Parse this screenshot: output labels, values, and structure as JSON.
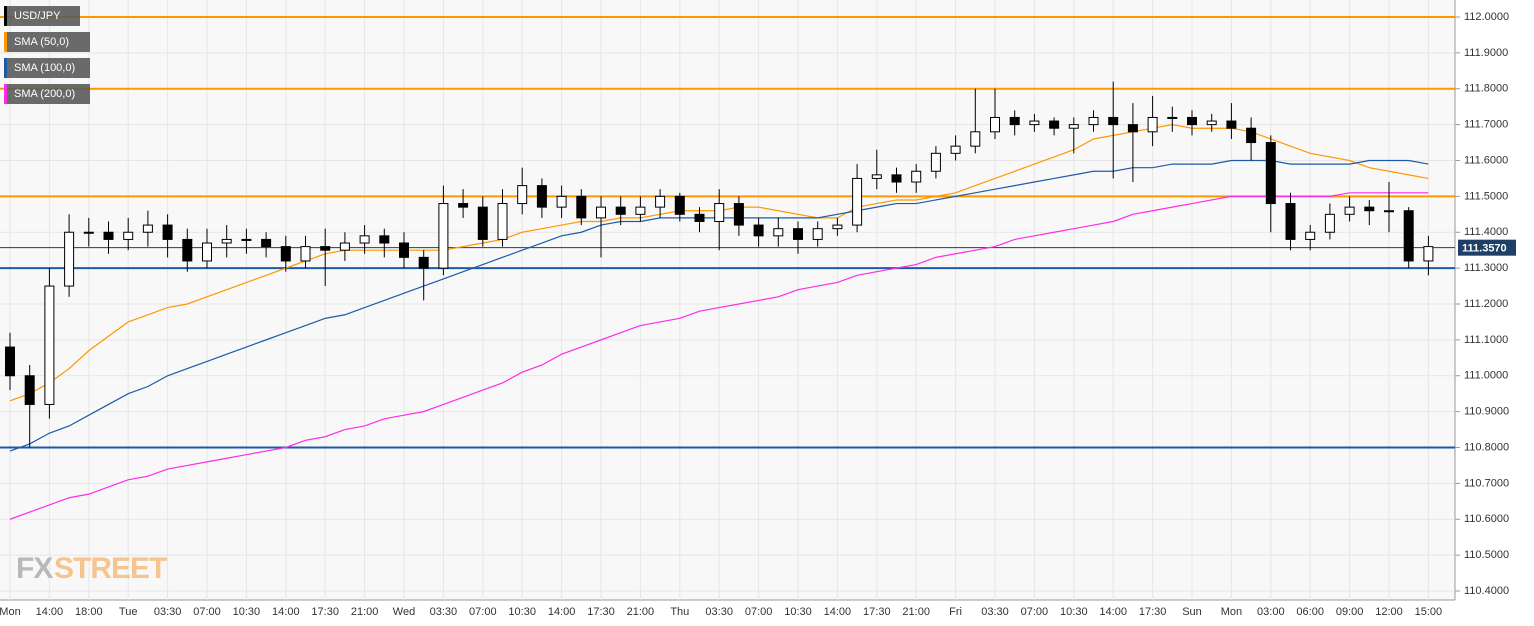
{
  "chart_data": {
    "type": "candlestick",
    "watermark": {
      "left": "FX",
      "right": "STREET"
    },
    "categories": [
      "Mon",
      null,
      "14:00",
      null,
      "18:00",
      null,
      "Tue",
      null,
      "03:30",
      null,
      "07:00",
      null,
      "10:30",
      null,
      "14:00",
      null,
      "17:30",
      null,
      "21:00",
      null,
      "Wed",
      null,
      "03:30",
      null,
      "07:00",
      null,
      "10:30",
      null,
      "14:00",
      null,
      "17:30",
      null,
      "21:00",
      null,
      "Thu",
      null,
      "03:30",
      null,
      "07:00",
      null,
      "10:30",
      null,
      "14:00",
      null,
      "17:30",
      null,
      "21:00",
      null,
      "Fri",
      null,
      "03:30",
      null,
      "07:00",
      null,
      "10:30",
      null,
      "14:00",
      null,
      "17:30",
      null,
      "Sun",
      null,
      "Mon",
      null,
      "03:00",
      null,
      "06:00",
      null,
      "09:00",
      null,
      "12:00",
      null,
      "15:00"
    ],
    "candles": {
      "name": "USD/JPY",
      "color": "#000000",
      "open": [
        111.08,
        111.0,
        110.92,
        111.25,
        111.4,
        111.4,
        111.38,
        111.4,
        111.42,
        111.38,
        111.32,
        111.37,
        111.38,
        111.38,
        111.36,
        111.32,
        111.36,
        111.35,
        111.37,
        111.39,
        111.37,
        111.33,
        111.3,
        111.48,
        111.47,
        111.38,
        111.48,
        111.53,
        111.47,
        111.5,
        111.44,
        111.47,
        111.45,
        111.47,
        111.5,
        111.45,
        111.43,
        111.48,
        111.42,
        111.39,
        111.41,
        111.38,
        111.41,
        111.42,
        111.55,
        111.56,
        111.54,
        111.57,
        111.62,
        111.64,
        111.68,
        111.72,
        111.7,
        111.71,
        111.69,
        111.7,
        111.72,
        111.7,
        111.68,
        111.72,
        111.72,
        111.7,
        111.71,
        111.69,
        111.65,
        111.48,
        111.38,
        111.4,
        111.45,
        111.47,
        111.46,
        111.46,
        111.32
      ],
      "high": [
        111.12,
        111.03,
        111.3,
        111.45,
        111.44,
        111.43,
        111.44,
        111.46,
        111.45,
        111.41,
        111.41,
        111.42,
        111.41,
        111.4,
        111.39,
        111.39,
        111.41,
        111.4,
        111.42,
        111.41,
        111.4,
        111.35,
        111.53,
        111.52,
        111.5,
        111.52,
        111.58,
        111.55,
        111.53,
        111.52,
        111.5,
        111.5,
        111.5,
        111.52,
        111.51,
        111.47,
        111.52,
        111.5,
        111.44,
        111.44,
        111.43,
        111.43,
        111.44,
        111.59,
        111.63,
        111.58,
        111.59,
        111.64,
        111.67,
        111.8,
        111.8,
        111.74,
        111.73,
        111.72,
        111.72,
        111.74,
        111.82,
        111.76,
        111.78,
        111.75,
        111.74,
        111.73,
        111.76,
        111.72,
        111.67,
        111.51,
        111.42,
        111.48,
        111.5,
        111.49,
        111.54,
        111.47,
        111.39
      ],
      "low": [
        110.96,
        110.8,
        110.88,
        111.22,
        111.36,
        111.34,
        111.35,
        111.36,
        111.33,
        111.29,
        111.3,
        111.33,
        111.34,
        111.33,
        111.29,
        111.3,
        111.25,
        111.32,
        111.34,
        111.33,
        111.3,
        111.21,
        111.28,
        111.44,
        111.36,
        111.36,
        111.45,
        111.44,
        111.44,
        111.42,
        111.33,
        111.42,
        111.43,
        111.44,
        111.43,
        111.4,
        111.35,
        111.39,
        111.36,
        111.36,
        111.34,
        111.36,
        111.39,
        111.4,
        111.52,
        111.51,
        111.51,
        111.55,
        111.6,
        111.62,
        111.66,
        111.67,
        111.68,
        111.67,
        111.62,
        111.68,
        111.55,
        111.54,
        111.64,
        111.68,
        111.67,
        111.68,
        111.66,
        111.6,
        111.4,
        111.35,
        111.35,
        111.38,
        111.43,
        111.42,
        111.4,
        111.3,
        111.28
      ],
      "close": [
        111.0,
        110.92,
        111.25,
        111.4,
        111.4,
        111.38,
        111.4,
        111.42,
        111.38,
        111.32,
        111.37,
        111.38,
        111.38,
        111.36,
        111.32,
        111.36,
        111.35,
        111.37,
        111.39,
        111.37,
        111.33,
        111.3,
        111.48,
        111.47,
        111.38,
        111.48,
        111.53,
        111.47,
        111.5,
        111.44,
        111.47,
        111.45,
        111.47,
        111.5,
        111.45,
        111.43,
        111.48,
        111.42,
        111.39,
        111.41,
        111.38,
        111.41,
        111.42,
        111.55,
        111.56,
        111.54,
        111.57,
        111.62,
        111.64,
        111.68,
        111.72,
        111.7,
        111.71,
        111.69,
        111.7,
        111.72,
        111.7,
        111.68,
        111.72,
        111.72,
        111.7,
        111.71,
        111.69,
        111.65,
        111.48,
        111.38,
        111.4,
        111.45,
        111.47,
        111.46,
        111.46,
        111.32,
        111.36
      ]
    },
    "series": [
      {
        "name": "SMA (50,0)",
        "color": "#ff9800",
        "values": [
          110.93,
          110.95,
          110.98,
          111.02,
          111.07,
          111.11,
          111.15,
          111.17,
          111.19,
          111.2,
          111.22,
          111.24,
          111.26,
          111.28,
          111.3,
          111.32,
          111.34,
          111.35,
          111.35,
          111.35,
          111.35,
          111.35,
          111.35,
          111.36,
          111.37,
          111.38,
          111.4,
          111.41,
          111.42,
          111.43,
          111.43,
          111.44,
          111.44,
          111.45,
          111.46,
          111.46,
          111.46,
          111.47,
          111.47,
          111.46,
          111.45,
          111.44,
          111.44,
          111.47,
          111.48,
          111.49,
          111.49,
          111.5,
          111.51,
          111.53,
          111.55,
          111.57,
          111.59,
          111.61,
          111.63,
          111.66,
          111.67,
          111.68,
          111.69,
          111.7,
          111.69,
          111.69,
          111.69,
          111.68,
          111.66,
          111.64,
          111.62,
          111.61,
          111.6,
          111.58,
          111.57,
          111.56,
          111.55
        ]
      },
      {
        "name": "SMA (100,0)",
        "color": "#1e5aa8",
        "values": [
          110.79,
          110.81,
          110.84,
          110.86,
          110.89,
          110.92,
          110.95,
          110.97,
          111.0,
          111.02,
          111.04,
          111.06,
          111.08,
          111.1,
          111.12,
          111.14,
          111.16,
          111.17,
          111.19,
          111.21,
          111.23,
          111.25,
          111.27,
          111.29,
          111.31,
          111.33,
          111.35,
          111.37,
          111.39,
          111.4,
          111.42,
          111.43,
          111.43,
          111.44,
          111.44,
          111.44,
          111.44,
          111.44,
          111.44,
          111.44,
          111.44,
          111.44,
          111.45,
          111.46,
          111.47,
          111.48,
          111.48,
          111.49,
          111.5,
          111.51,
          111.52,
          111.53,
          111.54,
          111.55,
          111.56,
          111.57,
          111.57,
          111.58,
          111.58,
          111.59,
          111.59,
          111.59,
          111.6,
          111.6,
          111.6,
          111.59,
          111.59,
          111.59,
          111.59,
          111.6,
          111.6,
          111.6,
          111.59
        ]
      },
      {
        "name": "SMA (200,0)",
        "color": "#ff2ce6",
        "values": [
          110.6,
          110.62,
          110.64,
          110.66,
          110.67,
          110.69,
          110.71,
          110.72,
          110.74,
          110.75,
          110.76,
          110.77,
          110.78,
          110.79,
          110.8,
          110.82,
          110.83,
          110.85,
          110.86,
          110.88,
          110.89,
          110.9,
          110.92,
          110.94,
          110.96,
          110.98,
          111.01,
          111.03,
          111.06,
          111.08,
          111.1,
          111.12,
          111.14,
          111.15,
          111.16,
          111.18,
          111.19,
          111.2,
          111.21,
          111.22,
          111.24,
          111.25,
          111.26,
          111.28,
          111.29,
          111.3,
          111.31,
          111.33,
          111.34,
          111.35,
          111.36,
          111.38,
          111.39,
          111.4,
          111.41,
          111.42,
          111.43,
          111.45,
          111.46,
          111.47,
          111.48,
          111.49,
          111.5,
          111.5,
          111.5,
          111.5,
          111.5,
          111.5,
          111.51,
          111.51,
          111.51,
          111.51,
          111.51
        ]
      }
    ],
    "hlines": [
      {
        "value": 112.0,
        "color": "#ff9800"
      },
      {
        "value": 111.8,
        "color": "#ff9800"
      },
      {
        "value": 111.5,
        "color": "#ff9800"
      },
      {
        "value": 111.3,
        "color": "#1e5aa8"
      },
      {
        "value": 110.8,
        "color": "#1e5aa8"
      }
    ],
    "last_price": {
      "value": 111.357,
      "label": "111.3570",
      "color": "#1e3f66"
    },
    "ylim": [
      110.35,
      112.05
    ],
    "yticks": [
      {
        "value": 110.4,
        "label": "110.4000"
      },
      {
        "value": 110.5,
        "label": "110.5000"
      },
      {
        "value": 110.6,
        "label": "110.6000"
      },
      {
        "value": 110.7,
        "label": "110.7000"
      },
      {
        "value": 110.8,
        "label": "110.8000"
      },
      {
        "value": 110.9,
        "label": "110.9000"
      },
      {
        "value": 111.0,
        "label": "111.0000"
      },
      {
        "value": 111.1,
        "label": "111.1000"
      },
      {
        "value": 111.2,
        "label": "111.2000"
      },
      {
        "value": 111.3,
        "label": "111.3000"
      },
      {
        "value": 111.4,
        "label": "111.4000"
      },
      {
        "value": 111.5,
        "label": "111.5000"
      },
      {
        "value": 111.6,
        "label": "111.6000"
      },
      {
        "value": 111.7,
        "label": "111.7000"
      },
      {
        "value": 111.8,
        "label": "111.8000"
      },
      {
        "value": 111.9,
        "label": "111.9000"
      },
      {
        "value": 112.0,
        "label": "112.0000"
      }
    ],
    "grid": true
  }
}
